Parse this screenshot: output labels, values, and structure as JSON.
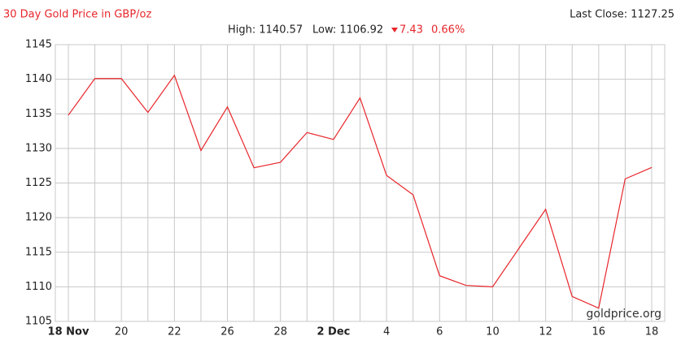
{
  "chart_data": {
    "type": "line",
    "title": "30 Day Gold Price in GBP/oz",
    "last_close": "Last Close: 1127.25",
    "stats": {
      "high": "High: 1140.57",
      "low": "Low: 1106.92",
      "change": "7.43",
      "change_pct": "0.66%"
    },
    "source": "goldprice.org",
    "categories": [
      "18 Nov",
      null,
      "20",
      null,
      "22",
      null,
      "26",
      null,
      "28",
      null,
      "2 Dec",
      null,
      "4",
      null,
      "6",
      null,
      "10",
      null,
      "12",
      null,
      "16",
      null,
      "18"
    ],
    "series": [
      {
        "name": "Gold Price",
        "color": "#e8262b",
        "values": [
          1134.8,
          1140.1,
          1140.1,
          1135.2,
          1140.57,
          1129.7,
          1136.0,
          1127.2,
          1128.0,
          1132.3,
          1131.3,
          1137.3,
          1126.1,
          1123.3,
          1111.6,
          1110.2,
          1110.0,
          1115.6,
          1121.2,
          1108.6,
          1106.92,
          1125.6,
          1127.25
        ]
      }
    ],
    "ylim": [
      1105,
      1145
    ],
    "yticks": [
      1105,
      1110,
      1115,
      1120,
      1125,
      1130,
      1135,
      1140,
      1145
    ],
    "grid": true
  }
}
